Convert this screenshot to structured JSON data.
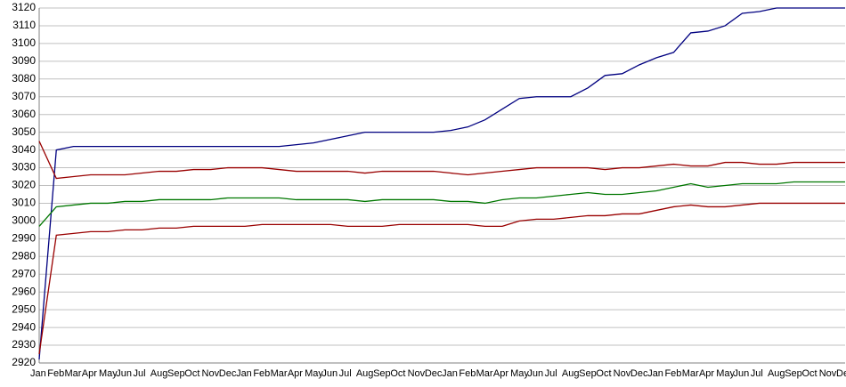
{
  "chart_data": {
    "type": "line",
    "categories": [
      "Jan",
      "Feb",
      "Mar",
      "Apr",
      "May",
      "Jun",
      "Jul",
      "Aug",
      "Sep",
      "Oct",
      "Nov",
      "Dec",
      "Jan",
      "Feb",
      "Mar",
      "Apr",
      "May",
      "Jun",
      "Jul",
      "Aug",
      "Sep",
      "Oct",
      "Nov",
      "Dec",
      "Jan",
      "Feb",
      "Mar",
      "Apr",
      "May",
      "Jun",
      "Jul",
      "Aug",
      "Sep",
      "Oct",
      "Nov",
      "Dec",
      "Jan",
      "Feb",
      "Mar",
      "Apr",
      "May",
      "Jun",
      "Jul",
      "Aug",
      "Sep",
      "Oct",
      "Nov",
      "Dec"
    ],
    "series": [
      {
        "color": "#000080",
        "values": [
          2922,
          3040,
          3042,
          3042,
          3042,
          3042,
          3042,
          3042,
          3042,
          3042,
          3042,
          3042,
          3042,
          3042,
          3042,
          3043,
          3044,
          3046,
          3048,
          3050,
          3050,
          3050,
          3050,
          3050,
          3051,
          3053,
          3057,
          3063,
          3069,
          3070,
          3070,
          3070,
          3075,
          3082,
          3083,
          3088,
          3092,
          3095,
          3106,
          3107,
          3110,
          3117,
          3118,
          3120,
          3120,
          3120,
          3120,
          3120
        ]
      },
      {
        "color": "#990000",
        "values": [
          3045,
          3024,
          3025,
          3026,
          3026,
          3026,
          3027,
          3028,
          3028,
          3029,
          3029,
          3030,
          3030,
          3030,
          3029,
          3028,
          3028,
          3028,
          3028,
          3027,
          3028,
          3028,
          3028,
          3028,
          3027,
          3026,
          3027,
          3028,
          3029,
          3030,
          3030,
          3030,
          3030,
          3029,
          3030,
          3030,
          3031,
          3032,
          3031,
          3031,
          3033,
          3033,
          3032,
          3032,
          3033,
          3033,
          3033,
          3033
        ]
      },
      {
        "color": "#007700",
        "values": [
          2997,
          3008,
          3009,
          3010,
          3010,
          3011,
          3011,
          3012,
          3012,
          3012,
          3012,
          3013,
          3013,
          3013,
          3013,
          3012,
          3012,
          3012,
          3012,
          3011,
          3012,
          3012,
          3012,
          3012,
          3011,
          3011,
          3010,
          3012,
          3013,
          3013,
          3014,
          3015,
          3016,
          3015,
          3015,
          3016,
          3017,
          3019,
          3021,
          3019,
          3020,
          3021,
          3021,
          3021,
          3022,
          3022,
          3022,
          3022
        ]
      },
      {
        "color": "#990000",
        "values": [
          2925,
          2992,
          2993,
          2994,
          2994,
          2995,
          2995,
          2996,
          2996,
          2997,
          2997,
          2997,
          2997,
          2998,
          2998,
          2998,
          2998,
          2998,
          2997,
          2997,
          2997,
          2998,
          2998,
          2998,
          2998,
          2998,
          2997,
          2997,
          3000,
          3001,
          3001,
          3002,
          3003,
          3003,
          3004,
          3004,
          3006,
          3008,
          3009,
          3008,
          3008,
          3009,
          3010,
          3010,
          3010,
          3010,
          3010,
          3010
        ]
      }
    ],
    "ylim": [
      2920,
      3120
    ],
    "yticks": [
      2920,
      2930,
      2940,
      2950,
      2960,
      2970,
      2980,
      2990,
      3000,
      3010,
      3020,
      3030,
      3040,
      3050,
      3060,
      3070,
      3080,
      3090,
      3100,
      3110,
      3120
    ],
    "grid": true
  }
}
